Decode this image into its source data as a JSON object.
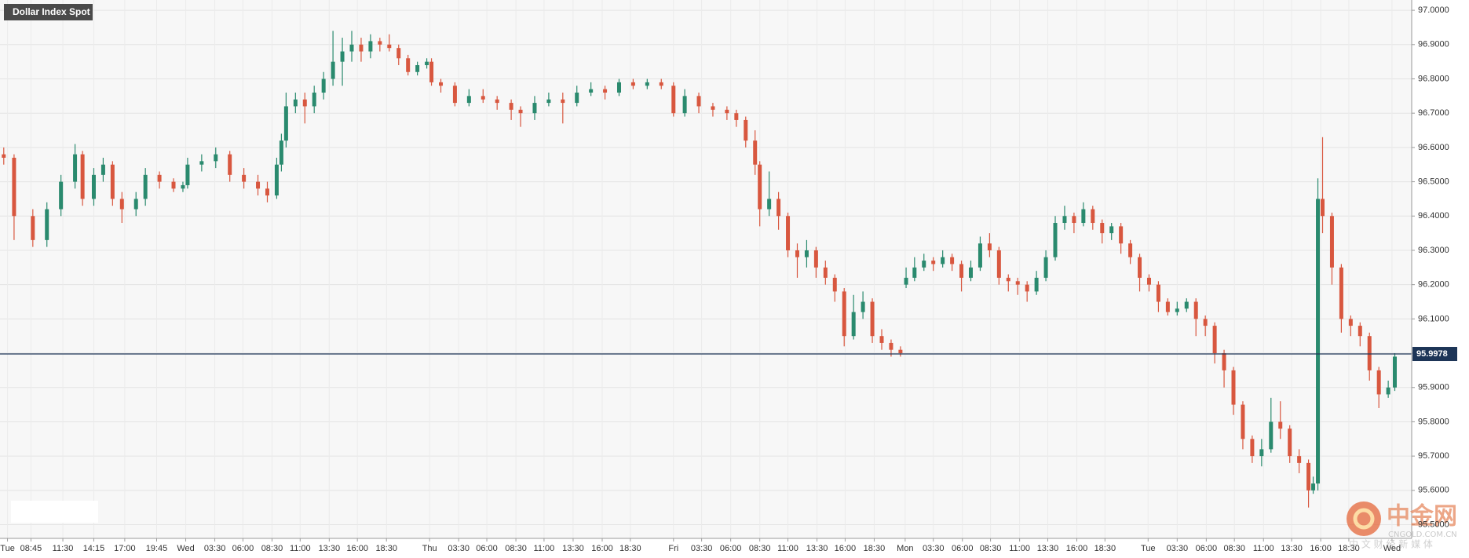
{
  "chart_data": {
    "type": "candlestick",
    "title": "Dollar Index Spot",
    "up_color": "#2a8a6e",
    "down_color": "#d8573f",
    "grid": true,
    "xlim": [
      0,
      1505
    ],
    "ylim": [
      95.46,
      97.03
    ],
    "x": [
      4,
      15,
      35,
      50,
      65,
      80,
      88,
      100,
      110,
      120,
      130,
      145,
      155,
      170,
      185,
      195,
      200,
      215,
      230,
      245,
      260,
      275,
      285,
      295,
      300,
      305,
      315,
      325,
      335,
      345,
      355,
      365,
      375,
      385,
      395,
      405,
      415,
      425,
      435,
      445,
      455,
      460,
      470,
      485,
      500,
      515,
      530,
      545,
      555,
      570,
      585,
      600,
      615,
      630,
      645,
      660,
      675,
      690,
      705,
      718,
      730,
      745,
      760,
      775,
      785,
      795,
      805,
      810,
      820,
      830,
      840,
      850,
      860,
      870,
      880,
      890,
      900,
      910,
      920,
      930,
      940,
      950,
      960,
      966,
      975,
      985,
      995,
      1005,
      1015,
      1025,
      1035,
      1045,
      1055,
      1065,
      1075,
      1085,
      1095,
      1105,
      1115,
      1125,
      1135,
      1145,
      1155,
      1165,
      1175,
      1185,
      1195,
      1205,
      1215,
      1225,
      1235,
      1245,
      1255,
      1265,
      1275,
      1285,
      1295,
      1305,
      1315,
      1325,
      1335,
      1345,
      1355,
      1365,
      1375,
      1385,
      1395,
      1400,
      1405,
      1410,
      1420,
      1430,
      1440,
      1450,
      1460,
      1470,
      1480,
      1487
    ],
    "open": [
      96.58,
      96.57,
      96.4,
      96.33,
      96.42,
      96.5,
      96.58,
      96.45,
      96.52,
      96.55,
      96.45,
      96.42,
      96.45,
      96.52,
      96.5,
      96.48,
      96.49,
      96.55,
      96.56,
      96.58,
      96.52,
      96.5,
      96.48,
      96.46,
      96.55,
      96.62,
      96.72,
      96.74,
      96.72,
      96.76,
      96.8,
      96.85,
      96.88,
      96.9,
      96.88,
      96.91,
      96.9,
      96.89,
      96.86,
      96.82,
      96.84,
      96.85,
      96.79,
      96.78,
      96.73,
      96.75,
      96.74,
      96.73,
      96.71,
      96.7,
      96.73,
      96.74,
      96.73,
      96.76,
      96.77,
      96.76,
      96.79,
      96.78,
      96.79,
      96.78,
      96.7,
      96.75,
      96.72,
      96.71,
      96.7,
      96.68,
      96.62,
      96.55,
      96.42,
      96.45,
      96.4,
      96.3,
      96.28,
      96.3,
      96.25,
      96.22,
      96.18,
      96.05,
      96.12,
      96.15,
      96.05,
      96.03,
      96.01,
      96.2,
      96.22,
      96.25,
      96.27,
      96.26,
      96.28,
      96.26,
      96.22,
      96.25,
      96.32,
      96.3,
      96.22,
      96.21,
      96.2,
      96.18,
      96.22,
      96.28,
      96.38,
      96.4,
      96.38,
      96.42,
      96.38,
      96.35,
      96.37,
      96.32,
      96.28,
      96.22,
      96.2,
      96.15,
      96.12,
      96.13,
      96.15,
      96.1,
      96.08,
      96.0,
      95.95,
      95.85,
      95.75,
      95.7,
      95.72,
      95.8,
      95.78,
      95.7,
      95.68,
      95.6,
      95.62,
      96.45,
      96.4,
      96.25,
      96.1,
      96.08,
      96.05,
      95.95,
      95.88,
      95.9
    ],
    "high": [
      96.6,
      96.58,
      96.42,
      96.44,
      96.52,
      96.61,
      96.59,
      96.54,
      96.57,
      96.56,
      96.47,
      96.47,
      96.54,
      96.53,
      96.51,
      96.5,
      96.57,
      96.58,
      96.6,
      96.59,
      96.54,
      96.52,
      96.5,
      96.57,
      96.64,
      96.76,
      96.76,
      96.76,
      96.78,
      96.82,
      96.94,
      96.92,
      96.94,
      96.92,
      96.93,
      96.92,
      96.93,
      96.9,
      96.87,
      96.85,
      96.86,
      96.86,
      96.8,
      96.79,
      96.77,
      96.77,
      96.75,
      96.74,
      96.72,
      96.75,
      96.76,
      96.76,
      96.78,
      96.79,
      96.78,
      96.8,
      96.8,
      96.8,
      96.8,
      96.79,
      96.77,
      96.76,
      96.73,
      96.72,
      96.71,
      96.69,
      96.65,
      96.56,
      96.53,
      96.47,
      96.41,
      96.32,
      96.33,
      96.31,
      96.27,
      96.23,
      96.19,
      96.17,
      96.18,
      96.16,
      96.07,
      96.04,
      96.02,
      96.25,
      96.28,
      96.29,
      96.28,
      96.3,
      96.29,
      96.27,
      96.27,
      96.34,
      96.35,
      96.31,
      96.23,
      96.22,
      96.21,
      96.24,
      96.3,
      96.4,
      96.43,
      96.41,
      96.44,
      96.43,
      96.39,
      96.38,
      96.38,
      96.33,
      96.29,
      96.23,
      96.21,
      96.16,
      96.15,
      96.16,
      96.16,
      96.11,
      96.09,
      96.01,
      95.96,
      95.86,
      95.76,
      95.75,
      95.87,
      95.86,
      95.79,
      95.72,
      95.69,
      95.64,
      96.51,
      96.63,
      96.41,
      96.26,
      96.11,
      96.09,
      96.06,
      95.96,
      95.92,
      96.0
    ],
    "low": [
      96.55,
      96.33,
      96.31,
      96.31,
      96.4,
      96.48,
      96.43,
      96.43,
      96.5,
      96.43,
      96.38,
      96.4,
      96.43,
      96.48,
      96.47,
      96.47,
      96.48,
      96.53,
      96.54,
      96.5,
      96.48,
      96.46,
      96.44,
      96.45,
      96.53,
      96.6,
      96.7,
      96.67,
      96.7,
      96.74,
      96.78,
      96.78,
      96.85,
      96.85,
      96.86,
      96.88,
      96.88,
      96.84,
      96.81,
      96.81,
      96.83,
      96.78,
      96.76,
      96.72,
      96.72,
      96.73,
      96.71,
      96.68,
      96.66,
      96.68,
      96.72,
      96.67,
      96.72,
      96.75,
      96.74,
      96.75,
      96.77,
      96.77,
      96.77,
      96.69,
      96.69,
      96.7,
      96.69,
      96.68,
      96.66,
      96.6,
      96.52,
      96.37,
      96.4,
      96.36,
      96.28,
      96.22,
      96.25,
      96.22,
      96.2,
      96.15,
      96.02,
      96.04,
      96.1,
      96.03,
      96.01,
      95.99,
      95.99,
      96.19,
      96.21,
      96.24,
      96.24,
      96.25,
      96.24,
      96.18,
      96.21,
      96.24,
      96.28,
      96.2,
      96.18,
      96.17,
      96.15,
      96.17,
      96.21,
      96.27,
      96.36,
      96.35,
      96.37,
      96.36,
      96.32,
      96.33,
      96.29,
      96.26,
      96.18,
      96.18,
      96.12,
      96.11,
      96.11,
      96.12,
      96.05,
      96.05,
      95.97,
      95.9,
      95.82,
      95.72,
      95.68,
      95.67,
      95.71,
      95.75,
      95.68,
      95.65,
      95.55,
      95.59,
      95.6,
      96.35,
      96.2,
      96.06,
      96.05,
      96.02,
      95.92,
      95.84,
      95.87,
      95.89
    ],
    "close": [
      96.57,
      96.4,
      96.33,
      96.42,
      96.5,
      96.58,
      96.45,
      96.52,
      96.55,
      96.45,
      96.42,
      96.45,
      96.52,
      96.5,
      96.48,
      96.49,
      96.55,
      96.56,
      96.58,
      96.52,
      96.5,
      96.48,
      96.46,
      96.55,
      96.62,
      96.72,
      96.74,
      96.72,
      96.76,
      96.8,
      96.85,
      96.88,
      96.9,
      96.88,
      96.91,
      96.9,
      96.89,
      96.86,
      96.82,
      96.84,
      96.85,
      96.79,
      96.78,
      96.73,
      96.75,
      96.74,
      96.73,
      96.71,
      96.7,
      96.73,
      96.74,
      96.73,
      96.76,
      96.77,
      96.76,
      96.79,
      96.78,
      96.79,
      96.78,
      96.7,
      96.75,
      96.72,
      96.71,
      96.7,
      96.68,
      96.62,
      96.55,
      96.42,
      96.45,
      96.4,
      96.3,
      96.28,
      96.3,
      96.25,
      96.22,
      96.18,
      96.05,
      96.12,
      96.15,
      96.05,
      96.03,
      96.01,
      96.0,
      96.22,
      96.25,
      96.27,
      96.26,
      96.28,
      96.26,
      96.22,
      96.25,
      96.32,
      96.3,
      96.22,
      96.21,
      96.2,
      96.18,
      96.22,
      96.28,
      96.38,
      96.4,
      96.38,
      96.42,
      96.38,
      96.35,
      96.37,
      96.32,
      96.28,
      96.22,
      96.2,
      96.15,
      96.12,
      96.13,
      96.15,
      96.1,
      96.08,
      96.0,
      95.95,
      95.85,
      95.75,
      95.7,
      95.72,
      95.8,
      95.78,
      95.7,
      95.68,
      95.6,
      95.62,
      96.45,
      96.4,
      96.25,
      96.1,
      96.08,
      96.05,
      95.95,
      95.88,
      95.9,
      95.99
    ],
    "last_price": 95.9978,
    "last_price_color": "#1d3557",
    "yticks": [
      {
        "value": 95.5,
        "label": "95.5000"
      },
      {
        "value": 95.6,
        "label": "95.6000"
      },
      {
        "value": 95.7,
        "label": "95.7000"
      },
      {
        "value": 95.8,
        "label": "95.8000"
      },
      {
        "value": 95.9,
        "label": "95.9000"
      },
      {
        "value": 96,
        "label": "96.0000"
      },
      {
        "value": 96.1,
        "label": "96.1000"
      },
      {
        "value": 96.2,
        "label": "96.2000"
      },
      {
        "value": 96.3,
        "label": "96.3000"
      },
      {
        "value": 96.4,
        "label": "96.4000"
      },
      {
        "value": 96.5,
        "label": "96.5000"
      },
      {
        "value": 96.6,
        "label": "96.6000"
      },
      {
        "value": 96.7,
        "label": "96.7000"
      },
      {
        "value": 96.8,
        "label": "96.8000"
      },
      {
        "value": 96.9,
        "label": "96.9000"
      },
      {
        "value": 97,
        "label": "97.0000"
      }
    ],
    "xticks": [
      {
        "value": 8,
        "label": "Tue"
      },
      {
        "value": 33,
        "label": "08:45"
      },
      {
        "value": 67,
        "label": "11:30"
      },
      {
        "value": 100,
        "label": "14:15"
      },
      {
        "value": 133,
        "label": "17:00"
      },
      {
        "value": 167,
        "label": "19:45"
      },
      {
        "value": 198,
        "label": "Wed"
      },
      {
        "value": 229,
        "label": "03:30"
      },
      {
        "value": 259,
        "label": "06:00"
      },
      {
        "value": 290,
        "label": "08:30"
      },
      {
        "value": 320,
        "label": "11:00"
      },
      {
        "value": 351,
        "label": "13:30"
      },
      {
        "value": 381,
        "label": "16:00"
      },
      {
        "value": 412,
        "label": "18:30"
      },
      {
        "value": 458,
        "label": "Thu"
      },
      {
        "value": 489,
        "label": "03:30"
      },
      {
        "value": 519,
        "label": "06:00"
      },
      {
        "value": 550,
        "label": "08:30"
      },
      {
        "value": 580,
        "label": "11:00"
      },
      {
        "value": 611,
        "label": "13:30"
      },
      {
        "value": 642,
        "label": "16:00"
      },
      {
        "value": 672,
        "label": "18:30"
      },
      {
        "value": 718,
        "label": "Fri"
      },
      {
        "value": 748,
        "label": "03:30"
      },
      {
        "value": 779,
        "label": "06:00"
      },
      {
        "value": 810,
        "label": "08:30"
      },
      {
        "value": 840,
        "label": "11:00"
      },
      {
        "value": 871,
        "label": "13:30"
      },
      {
        "value": 901,
        "label": "16:00"
      },
      {
        "value": 932,
        "label": "18:30"
      },
      {
        "value": 965,
        "label": "Mon"
      },
      {
        "value": 995,
        "label": "03:30"
      },
      {
        "value": 1026,
        "label": "06:00"
      },
      {
        "value": 1056,
        "label": "08:30"
      },
      {
        "value": 1087,
        "label": "11:00"
      },
      {
        "value": 1117,
        "label": "13:30"
      },
      {
        "value": 1148,
        "label": "16:00"
      },
      {
        "value": 1178,
        "label": "18:30"
      },
      {
        "value": 1224,
        "label": "Tue"
      },
      {
        "value": 1255,
        "label": "03:30"
      },
      {
        "value": 1286,
        "label": "06:00"
      },
      {
        "value": 1316,
        "label": "08:30"
      },
      {
        "value": 1347,
        "label": "11:00"
      },
      {
        "value": 1377,
        "label": "13:30"
      },
      {
        "value": 1408,
        "label": "16:00"
      },
      {
        "value": 1438,
        "label": "18:30"
      },
      {
        "value": 1484,
        "label": "Wed"
      }
    ]
  },
  "watermark": {
    "brand": "中金网",
    "site": "CNGOLD.COM.CN",
    "tagline": "中 文 财 经 新 媒 体"
  }
}
